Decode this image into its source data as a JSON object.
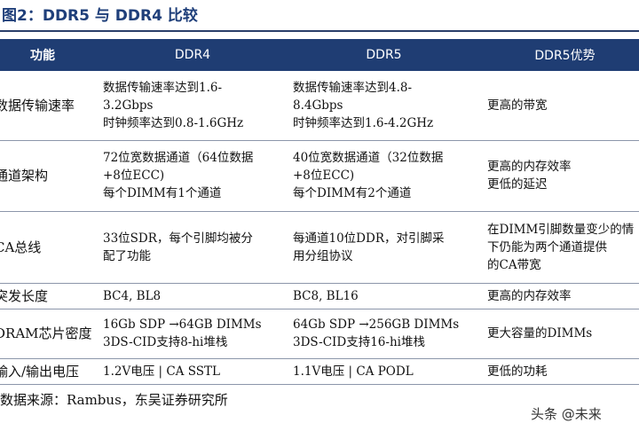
{
  "caption": "图2：DDR5 与 DDR4 比较",
  "table": {
    "headers": [
      "功能",
      "DDR4",
      "DDR5",
      "DDR5优势"
    ],
    "rows": [
      {
        "feature": "数据传输速率",
        "ddr4": [
          "数据传输速率达到1.6-",
          "3.2Gbps",
          "时钟频率达到0.8-1.6GHz"
        ],
        "ddr5": [
          "数据传输速率达到4.8-",
          "8.4Gbps",
          "时钟频率达到1.6-4.2GHz"
        ],
        "advantage": [
          "更高的带宽"
        ]
      },
      {
        "feature": "通道架构",
        "ddr4": [
          "72位宽数据通道（64位数据",
          "+8位ECC)",
          "每个DIMM有1个通道"
        ],
        "ddr5": [
          "40位宽数据通道（32位数据",
          "+8位ECC)",
          "每个DIMM有2个通道"
        ],
        "advantage": [
          "更高的内存效率",
          "更低的延迟"
        ]
      },
      {
        "feature": "CA总线",
        "ddr4": [
          "33位SDR，每个引脚均被分",
          "配了功能"
        ],
        "ddr5": [
          "每通道10位DDR，对引脚采",
          "用分组协议"
        ],
        "advantage": [
          "在DIMM引脚数量变少的情",
          "下仍能为两个通道提供",
          "的CA带宽"
        ]
      },
      {
        "feature": "突发长度",
        "ddr4": [
          "BC4, BL8"
        ],
        "ddr5": [
          "BC8, BL16"
        ],
        "advantage": [
          "更高的内存效率"
        ]
      },
      {
        "feature": "DRAM芯片密度",
        "ddr4": [
          "16Gb SDP →64GB DIMMs",
          "3DS-CID支持8-hi堆栈"
        ],
        "ddr5": [
          "64Gb SDP →256GB DIMMs",
          "3DS-CID支持16-hi堆栈"
        ],
        "advantage": [
          "更大容量的DIMMs"
        ]
      },
      {
        "feature": "输入/输出电压",
        "ddr4": [
          "1.2V电压 | CA SSTL"
        ],
        "ddr5": [
          "1.1V电压 | CA PODL"
        ],
        "advantage": [
          "更低的功耗"
        ]
      }
    ]
  },
  "source": "数据来源：Rambus，东吴证券研究所",
  "watermark": "头条 @未来"
}
